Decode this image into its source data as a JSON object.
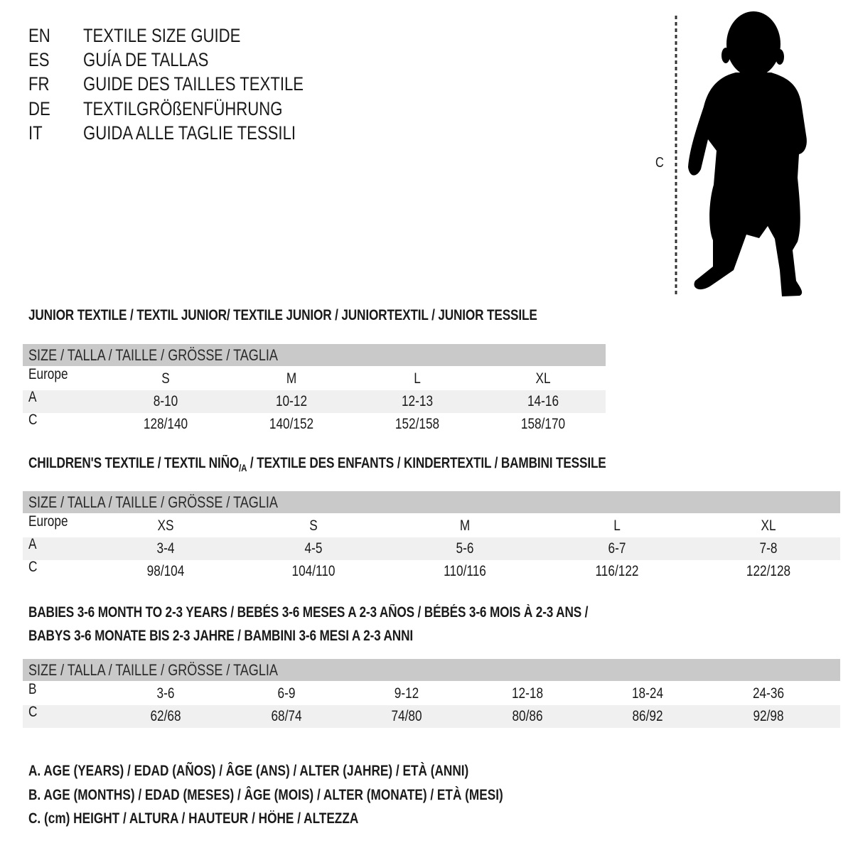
{
  "languages": [
    {
      "code": "EN",
      "text": "TEXTILE SIZE GUIDE"
    },
    {
      "code": "ES",
      "text": "GUÍA DE TALLAS"
    },
    {
      "code": "FR",
      "text": "GUIDE DES TAILLES TEXTILE"
    },
    {
      "code": "DE",
      "text": "TEXTILGRÖßENFÜHRUNG"
    },
    {
      "code": "IT",
      "text": "GUIDA ALLE TAGLIE TESSILI"
    }
  ],
  "figure": {
    "measure_label": "C",
    "icon": "child-silhouette-icon"
  },
  "header_label": "SIZE / TALLA / TAILLE / GRÖSSE / TAGLIA",
  "junior": {
    "title": "JUNIOR TEXTILE / TEXTIL JUNIOR/ TEXTILE JUNIOR / JUNIORTEXTIL / JUNIOR TESSILE",
    "rows": [
      {
        "label": "Europe",
        "cells": [
          "S",
          "M",
          "L",
          "XL"
        ]
      },
      {
        "label": "A",
        "cells": [
          "8-10",
          "10-12",
          "12-13",
          "14-16"
        ]
      },
      {
        "label": "C",
        "cells": [
          "128/140",
          "140/152",
          "152/158",
          "158/170"
        ]
      }
    ]
  },
  "children": {
    "title": "CHILDREN'S TEXTILE / TEXTIL NIÑO",
    "title_sub": "/A",
    "title_rest": " / TEXTILE DES ENFANTS / KINDERTEXTIL / BAMBINI TESSILE",
    "rows": [
      {
        "label": "Europe",
        "cells": [
          "XS",
          "S",
          "M",
          "L",
          "XL"
        ]
      },
      {
        "label": "A",
        "cells": [
          "3-4",
          "4-5",
          "5-6",
          "6-7",
          "7-8"
        ]
      },
      {
        "label": "C",
        "cells": [
          "98/104",
          "104/110",
          "110/116",
          "116/122",
          "122/128"
        ]
      }
    ]
  },
  "babies": {
    "title_line1": "BABIES 3-6 MONTH TO 2-3 YEARS / BEBÉS 3-6 MESES A 2-3 AÑOS / BÉBÉS 3-6 MOIS À 2-3 ANS /",
    "title_line2": "BABYS 3-6 MONATE BIS 2-3 JAHRE / BAMBINI 3-6 MESI A 2-3 ANNI",
    "rows": [
      {
        "label": "B",
        "cells": [
          "3-6",
          "6-9",
          "9-12",
          "12-18",
          "18-24",
          "24-36"
        ]
      },
      {
        "label": "C",
        "cells": [
          "62/68",
          "68/74",
          "74/80",
          "80/86",
          "86/92",
          "92/98"
        ]
      }
    ]
  },
  "legend": [
    "A. AGE (YEARS) / EDAD (AÑOS) / ÂGE (ANS) / ALTER (JAHRE) / ETÀ (ANNI)",
    "B. AGE (MONTHS) / EDAD (MESES) / ÂGE (MOIS) / ALTER (MONATE) / ETÀ (MESI)",
    "C. (cm) HEIGHT / ALTURA / HAUTEUR / HÖHE / ALTEZZA"
  ],
  "colors": {
    "header_band": "#c9c9c9",
    "shaded_row": "#f0f0f0",
    "text": "#1a1a1a"
  }
}
